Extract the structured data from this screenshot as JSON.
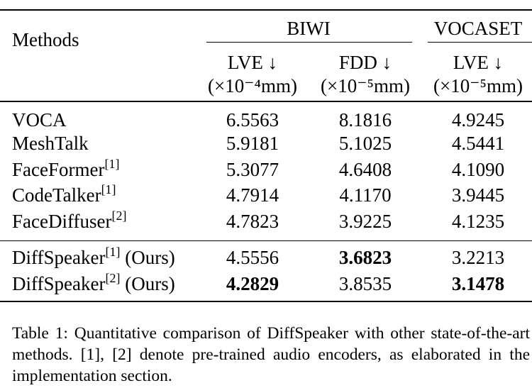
{
  "table": {
    "header": {
      "methods_label": "Methods",
      "groups": [
        "BIWI",
        "VOCASET"
      ],
      "columns": [
        {
          "metric": "LVE ↓",
          "unit": "(×10⁻⁴mm)"
        },
        {
          "metric": "FDD ↓",
          "unit": "(×10⁻⁵mm)"
        },
        {
          "metric": "LVE ↓",
          "unit": "(×10⁻⁵mm)"
        }
      ]
    },
    "rows": [
      {
        "method": "VOCA",
        "sup": "",
        "suffix": "",
        "values": [
          "6.5563",
          "8.1816",
          "4.9245"
        ],
        "bold": [
          false,
          false,
          false
        ]
      },
      {
        "method": "MeshTalk",
        "sup": "",
        "suffix": "",
        "values": [
          "5.9181",
          "5.1025",
          "4.5441"
        ],
        "bold": [
          false,
          false,
          false
        ]
      },
      {
        "method": "FaceFormer",
        "sup": "[1]",
        "suffix": "",
        "values": [
          "5.3077",
          "4.6408",
          "4.1090"
        ],
        "bold": [
          false,
          false,
          false
        ]
      },
      {
        "method": "CodeTalker",
        "sup": "[1]",
        "suffix": "",
        "values": [
          "4.7914",
          "4.1170",
          "3.9445"
        ],
        "bold": [
          false,
          false,
          false
        ]
      },
      {
        "method": "FaceDiffuser",
        "sup": "[2]",
        "suffix": "",
        "values": [
          "4.7823",
          "3.9225",
          "4.1235"
        ],
        "bold": [
          false,
          false,
          false
        ]
      },
      {
        "method": "DiffSpeaker",
        "sup": "[1]",
        "suffix": " (Ours)",
        "values": [
          "4.5556",
          "3.6823",
          "3.2213"
        ],
        "bold": [
          false,
          true,
          false
        ]
      },
      {
        "method": "DiffSpeaker",
        "sup": "[2]",
        "suffix": " (Ours)",
        "values": [
          "4.2829",
          "3.8535",
          "3.1478"
        ],
        "bold": [
          true,
          false,
          true
        ]
      }
    ]
  },
  "caption": "Table 1: Quantitative comparison of DiffSpeaker with other state-of-the-art methods. [1], [2] denote pre-trained audio encoders, as elaborated in the implementation section."
}
